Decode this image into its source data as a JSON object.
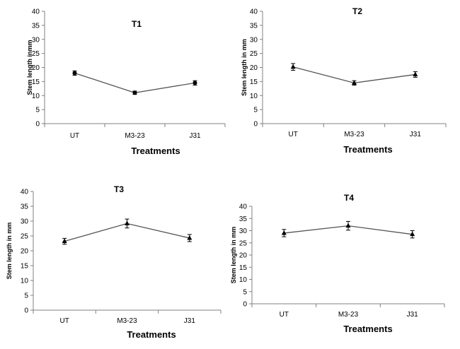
{
  "chart_data": [
    {
      "type": "line",
      "title": "T1",
      "xlabel": "Treatments",
      "ylabel": "Stem length inmm",
      "categories": [
        "UT",
        "M3-23",
        "J31"
      ],
      "values": [
        18,
        11,
        14.5
      ],
      "errors": [
        0.8,
        0.6,
        0.8
      ],
      "ylim": [
        0,
        40
      ],
      "yticks": [
        "0",
        "5",
        "10",
        "15",
        "20",
        "25",
        "30",
        "35",
        "40"
      ],
      "marker": "circle",
      "grid": false
    },
    {
      "type": "line",
      "title": "T2",
      "xlabel": "Treatments",
      "ylabel": "Stem length in mm",
      "categories": [
        "UT",
        "M3-23",
        "J31"
      ],
      "values": [
        20.2,
        14.5,
        17.5
      ],
      "errors": [
        1.2,
        0.8,
        1.0
      ],
      "ylim": [
        0,
        40
      ],
      "yticks": [
        "0",
        "5",
        "10",
        "15",
        "20",
        "25",
        "30",
        "35",
        "40"
      ],
      "marker": "triangle",
      "grid": false
    },
    {
      "type": "line",
      "title": "T3",
      "xlabel": "Treatments",
      "ylabel": "Stem length in mm",
      "categories": [
        "UT",
        "M3-23",
        "J31"
      ],
      "values": [
        23.2,
        29.2,
        24.3
      ],
      "errors": [
        1.0,
        1.5,
        1.2
      ],
      "ylim": [
        0,
        40
      ],
      "yticks": [
        "0",
        "5",
        "10",
        "15",
        "20",
        "25",
        "30",
        "35",
        "40"
      ],
      "marker": "triangle",
      "grid": false
    },
    {
      "type": "line",
      "title": "T4",
      "xlabel": "Treatments",
      "ylabel": "Stem length in mm",
      "categories": [
        "UT",
        "M3-23",
        "J31"
      ],
      "values": [
        29,
        32,
        28.5
      ],
      "errors": [
        1.5,
        1.8,
        1.5
      ],
      "ylim": [
        0,
        40
      ],
      "yticks": [
        "0",
        "5",
        "10",
        "15",
        "20",
        "25",
        "30",
        "35",
        "40"
      ],
      "marker": "triangle",
      "grid": false
    }
  ]
}
